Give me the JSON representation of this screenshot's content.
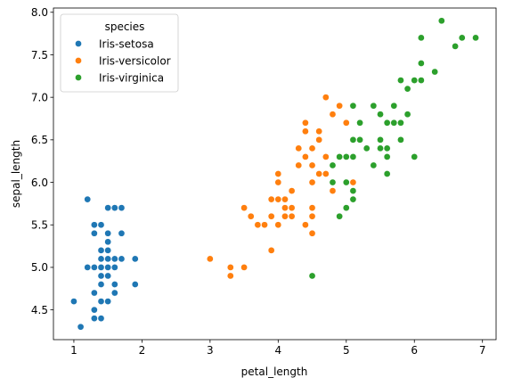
{
  "chart_data": {
    "type": "scatter",
    "title": "",
    "xlabel": "petal_length",
    "ylabel": "sepal_length",
    "xlim": [
      0.7,
      7.2
    ],
    "ylim": [
      4.15,
      8.05
    ],
    "xticks": [
      1,
      2,
      3,
      4,
      5,
      6,
      7
    ],
    "yticks": [
      4.5,
      5.0,
      5.5,
      6.0,
      6.5,
      7.0,
      7.5,
      8.0
    ],
    "xtick_labels": [
      "1",
      "2",
      "3",
      "4",
      "5",
      "6",
      "7"
    ],
    "ytick_labels": [
      "4.5",
      "5.0",
      "5.5",
      "6.0",
      "6.5",
      "7.0",
      "7.5",
      "8.0"
    ],
    "grid": false,
    "legend": {
      "title": "species",
      "placement": "top-left",
      "entries": [
        "Iris-setosa",
        "Iris-versicolor",
        "Iris-virginica"
      ]
    },
    "series": [
      {
        "name": "Iris-setosa",
        "color": "#1f77b4",
        "points": [
          [
            1.0,
            4.6
          ],
          [
            1.1,
            4.3
          ],
          [
            1.2,
            5.8
          ],
          [
            1.2,
            5.0
          ],
          [
            1.3,
            4.4
          ],
          [
            1.3,
            4.5
          ],
          [
            1.3,
            4.7
          ],
          [
            1.3,
            5.0
          ],
          [
            1.3,
            5.4
          ],
          [
            1.3,
            5.5
          ],
          [
            1.4,
            4.4
          ],
          [
            1.4,
            4.6
          ],
          [
            1.4,
            4.8
          ],
          [
            1.4,
            4.9
          ],
          [
            1.4,
            5.0
          ],
          [
            1.4,
            5.1
          ],
          [
            1.4,
            5.2
          ],
          [
            1.4,
            5.5
          ],
          [
            1.5,
            4.6
          ],
          [
            1.5,
            4.9
          ],
          [
            1.5,
            5.0
          ],
          [
            1.5,
            5.1
          ],
          [
            1.5,
            5.2
          ],
          [
            1.5,
            5.3
          ],
          [
            1.5,
            5.4
          ],
          [
            1.5,
            5.7
          ],
          [
            1.6,
            4.7
          ],
          [
            1.6,
            4.8
          ],
          [
            1.6,
            5.0
          ],
          [
            1.6,
            5.1
          ],
          [
            1.6,
            5.7
          ],
          [
            1.7,
            5.1
          ],
          [
            1.7,
            5.4
          ],
          [
            1.7,
            5.7
          ],
          [
            1.9,
            4.8
          ],
          [
            1.9,
            5.1
          ]
        ]
      },
      {
        "name": "Iris-versicolor",
        "color": "#ff7f0e",
        "points": [
          [
            3.0,
            5.1
          ],
          [
            3.3,
            4.9
          ],
          [
            3.3,
            5.0
          ],
          [
            3.5,
            5.0
          ],
          [
            3.5,
            5.7
          ],
          [
            3.6,
            5.6
          ],
          [
            3.7,
            5.5
          ],
          [
            3.8,
            5.5
          ],
          [
            3.9,
            5.2
          ],
          [
            3.9,
            5.6
          ],
          [
            3.9,
            5.8
          ],
          [
            4.0,
            5.5
          ],
          [
            4.0,
            5.8
          ],
          [
            4.0,
            6.0
          ],
          [
            4.0,
            6.1
          ],
          [
            4.1,
            5.6
          ],
          [
            4.1,
            5.7
          ],
          [
            4.1,
            5.8
          ],
          [
            4.2,
            5.6
          ],
          [
            4.2,
            5.7
          ],
          [
            4.2,
            5.9
          ],
          [
            4.3,
            6.2
          ],
          [
            4.3,
            6.4
          ],
          [
            4.4,
            5.5
          ],
          [
            4.4,
            6.3
          ],
          [
            4.4,
            6.6
          ],
          [
            4.4,
            6.7
          ],
          [
            4.5,
            5.4
          ],
          [
            4.5,
            5.6
          ],
          [
            4.5,
            5.7
          ],
          [
            4.5,
            6.0
          ],
          [
            4.5,
            6.2
          ],
          [
            4.5,
            6.4
          ],
          [
            4.6,
            6.1
          ],
          [
            4.6,
            6.5
          ],
          [
            4.6,
            6.6
          ],
          [
            4.7,
            6.1
          ],
          [
            4.7,
            6.3
          ],
          [
            4.7,
            7.0
          ],
          [
            4.8,
            5.9
          ],
          [
            4.8,
            6.8
          ],
          [
            4.9,
            6.3
          ],
          [
            4.9,
            6.9
          ],
          [
            5.0,
            6.7
          ],
          [
            5.1,
            6.0
          ]
        ]
      },
      {
        "name": "Iris-virginica",
        "color": "#2ca02c",
        "points": [
          [
            4.5,
            4.9
          ],
          [
            4.8,
            6.0
          ],
          [
            4.8,
            6.2
          ],
          [
            4.9,
            5.6
          ],
          [
            4.9,
            6.3
          ],
          [
            5.0,
            5.7
          ],
          [
            5.0,
            6.0
          ],
          [
            5.0,
            6.3
          ],
          [
            5.1,
            5.8
          ],
          [
            5.1,
            5.9
          ],
          [
            5.1,
            6.3
          ],
          [
            5.1,
            6.5
          ],
          [
            5.1,
            6.9
          ],
          [
            5.2,
            6.5
          ],
          [
            5.2,
            6.7
          ],
          [
            5.3,
            6.4
          ],
          [
            5.4,
            6.2
          ],
          [
            5.4,
            6.9
          ],
          [
            5.5,
            6.4
          ],
          [
            5.5,
            6.5
          ],
          [
            5.5,
            6.8
          ],
          [
            5.6,
            6.1
          ],
          [
            5.6,
            6.3
          ],
          [
            5.6,
            6.4
          ],
          [
            5.6,
            6.7
          ],
          [
            5.7,
            6.7
          ],
          [
            5.7,
            6.9
          ],
          [
            5.8,
            6.5
          ],
          [
            5.8,
            6.7
          ],
          [
            5.8,
            7.2
          ],
          [
            5.9,
            6.8
          ],
          [
            5.9,
            7.1
          ],
          [
            6.0,
            6.3
          ],
          [
            6.0,
            7.2
          ],
          [
            6.1,
            7.2
          ],
          [
            6.1,
            7.4
          ],
          [
            6.1,
            7.7
          ],
          [
            6.3,
            7.3
          ],
          [
            6.4,
            7.9
          ],
          [
            6.6,
            7.6
          ],
          [
            6.7,
            7.7
          ],
          [
            6.9,
            7.7
          ]
        ]
      }
    ]
  }
}
